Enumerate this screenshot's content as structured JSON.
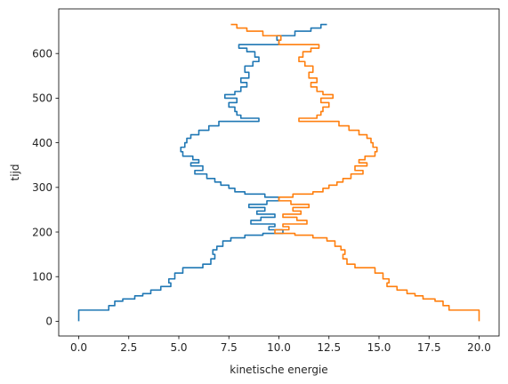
{
  "chart_data": {
    "type": "line",
    "title": "",
    "xlabel": "kinetische energie",
    "ylabel": "tijd",
    "xlim": [
      -1.0,
      21.0
    ],
    "ylim": [
      -33,
      700
    ],
    "xticks": [
      0.0,
      2.5,
      5.0,
      7.5,
      10.0,
      12.5,
      15.0,
      17.5,
      20.0
    ],
    "xtick_labels": [
      "0.0",
      "2.5",
      "5.0",
      "7.5",
      "10.0",
      "12.5",
      "15.0",
      "17.5",
      "20.0"
    ],
    "yticks": [
      0,
      100,
      200,
      300,
      400,
      500,
      600
    ],
    "ytick_labels": [
      "0",
      "100",
      "200",
      "300",
      "400",
      "500",
      "600"
    ],
    "grid": false,
    "legend": "none",
    "colors": [
      "#1f77b4",
      "#ff7f0e"
    ],
    "series": [
      {
        "points": [
          [
            0.0,
            0
          ],
          [
            0.0,
            25
          ],
          [
            1.5,
            25
          ],
          [
            1.5,
            35
          ],
          [
            1.8,
            35
          ],
          [
            1.8,
            45
          ],
          [
            2.2,
            45
          ],
          [
            2.2,
            50
          ],
          [
            2.8,
            50
          ],
          [
            2.8,
            57
          ],
          [
            3.2,
            57
          ],
          [
            3.2,
            62
          ],
          [
            3.6,
            62
          ],
          [
            3.6,
            70
          ],
          [
            4.1,
            70
          ],
          [
            4.1,
            78
          ],
          [
            4.6,
            78
          ],
          [
            4.6,
            86
          ],
          [
            4.5,
            86
          ],
          [
            4.5,
            95
          ],
          [
            4.8,
            95
          ],
          [
            4.8,
            108
          ],
          [
            5.2,
            108
          ],
          [
            5.2,
            120
          ],
          [
            6.2,
            120
          ],
          [
            6.2,
            128
          ],
          [
            6.6,
            128
          ],
          [
            6.6,
            140
          ],
          [
            6.8,
            140
          ],
          [
            6.8,
            150
          ],
          [
            6.7,
            150
          ],
          [
            6.7,
            160
          ],
          [
            6.9,
            160
          ],
          [
            6.9,
            168
          ],
          [
            7.2,
            168
          ],
          [
            7.2,
            180
          ],
          [
            7.6,
            180
          ],
          [
            7.6,
            187
          ],
          [
            8.3,
            187
          ],
          [
            8.3,
            193
          ],
          [
            9.2,
            193
          ],
          [
            9.2,
            197
          ],
          [
            10.2,
            197
          ],
          [
            10.2,
            205
          ],
          [
            9.5,
            205
          ],
          [
            9.5,
            212
          ],
          [
            9.8,
            212
          ],
          [
            9.8,
            218
          ],
          [
            8.6,
            218
          ],
          [
            8.6,
            226
          ],
          [
            9.1,
            226
          ],
          [
            9.1,
            233
          ],
          [
            9.8,
            233
          ],
          [
            9.8,
            240
          ],
          [
            8.9,
            240
          ],
          [
            8.9,
            247
          ],
          [
            9.3,
            247
          ],
          [
            9.3,
            255
          ],
          [
            8.5,
            255
          ],
          [
            8.5,
            262
          ],
          [
            9.4,
            262
          ],
          [
            9.4,
            270
          ],
          [
            10.0,
            270
          ],
          [
            10.0,
            278
          ],
          [
            9.3,
            278
          ],
          [
            9.3,
            285
          ],
          [
            8.3,
            285
          ],
          [
            8.3,
            290
          ],
          [
            7.8,
            290
          ],
          [
            7.8,
            298
          ],
          [
            7.5,
            298
          ],
          [
            7.5,
            305
          ],
          [
            7.1,
            305
          ],
          [
            7.1,
            312
          ],
          [
            6.8,
            312
          ],
          [
            6.8,
            320
          ],
          [
            6.4,
            320
          ],
          [
            6.4,
            330
          ],
          [
            5.8,
            330
          ],
          [
            5.8,
            338
          ],
          [
            6.2,
            338
          ],
          [
            6.2,
            348
          ],
          [
            5.6,
            348
          ],
          [
            5.6,
            355
          ],
          [
            6.0,
            355
          ],
          [
            6.0,
            362
          ],
          [
            5.7,
            362
          ],
          [
            5.7,
            370
          ],
          [
            5.2,
            370
          ],
          [
            5.2,
            380
          ],
          [
            5.1,
            380
          ],
          [
            5.1,
            390
          ],
          [
            5.3,
            390
          ],
          [
            5.3,
            400
          ],
          [
            5.4,
            400
          ],
          [
            5.4,
            410
          ],
          [
            5.6,
            410
          ],
          [
            5.6,
            418
          ],
          [
            6.0,
            418
          ],
          [
            6.0,
            428
          ],
          [
            6.5,
            428
          ],
          [
            6.5,
            438
          ],
          [
            7.0,
            438
          ],
          [
            7.0,
            448
          ],
          [
            9.0,
            448
          ],
          [
            9.0,
            455
          ],
          [
            8.1,
            455
          ],
          [
            8.1,
            462
          ],
          [
            7.9,
            462
          ],
          [
            7.9,
            470
          ],
          [
            7.8,
            470
          ],
          [
            7.8,
            480
          ],
          [
            7.5,
            480
          ],
          [
            7.5,
            490
          ],
          [
            7.9,
            490
          ],
          [
            7.9,
            500
          ],
          [
            7.3,
            500
          ],
          [
            7.3,
            508
          ],
          [
            7.8,
            508
          ],
          [
            7.8,
            515
          ],
          [
            8.1,
            515
          ],
          [
            8.1,
            525
          ],
          [
            8.4,
            525
          ],
          [
            8.4,
            535
          ],
          [
            8.1,
            535
          ],
          [
            8.1,
            545
          ],
          [
            8.5,
            545
          ],
          [
            8.5,
            558
          ],
          [
            8.3,
            558
          ],
          [
            8.3,
            572
          ],
          [
            8.7,
            572
          ],
          [
            8.7,
            582
          ],
          [
            9.0,
            582
          ],
          [
            9.0,
            592
          ],
          [
            8.8,
            592
          ],
          [
            8.8,
            604
          ],
          [
            8.4,
            604
          ],
          [
            8.4,
            612
          ],
          [
            8.0,
            612
          ],
          [
            8.0,
            620
          ],
          [
            10.0,
            620
          ],
          [
            10.0,
            630
          ],
          [
            9.9,
            630
          ],
          [
            9.9,
            640
          ],
          [
            10.8,
            640
          ],
          [
            10.8,
            650
          ],
          [
            11.6,
            650
          ],
          [
            11.6,
            657
          ],
          [
            12.1,
            657
          ],
          [
            12.1,
            665
          ],
          [
            12.4,
            665
          ]
        ]
      },
      {
        "points": [
          [
            20.0,
            0
          ],
          [
            20.0,
            25
          ],
          [
            18.5,
            25
          ],
          [
            18.5,
            35
          ],
          [
            18.2,
            35
          ],
          [
            18.2,
            45
          ],
          [
            17.8,
            45
          ],
          [
            17.8,
            50
          ],
          [
            17.2,
            50
          ],
          [
            17.2,
            57
          ],
          [
            16.8,
            57
          ],
          [
            16.8,
            62
          ],
          [
            16.4,
            62
          ],
          [
            16.4,
            70
          ],
          [
            15.9,
            70
          ],
          [
            15.9,
            78
          ],
          [
            15.4,
            78
          ],
          [
            15.4,
            86
          ],
          [
            15.5,
            86
          ],
          [
            15.5,
            95
          ],
          [
            15.2,
            95
          ],
          [
            15.2,
            108
          ],
          [
            14.8,
            108
          ],
          [
            14.8,
            120
          ],
          [
            13.8,
            120
          ],
          [
            13.8,
            128
          ],
          [
            13.4,
            128
          ],
          [
            13.4,
            140
          ],
          [
            13.2,
            140
          ],
          [
            13.2,
            150
          ],
          [
            13.3,
            150
          ],
          [
            13.3,
            160
          ],
          [
            13.1,
            160
          ],
          [
            13.1,
            168
          ],
          [
            12.8,
            168
          ],
          [
            12.8,
            180
          ],
          [
            12.4,
            180
          ],
          [
            12.4,
            187
          ],
          [
            11.7,
            187
          ],
          [
            11.7,
            193
          ],
          [
            10.8,
            193
          ],
          [
            10.8,
            197
          ],
          [
            9.8,
            197
          ],
          [
            9.8,
            205
          ],
          [
            10.5,
            205
          ],
          [
            10.5,
            212
          ],
          [
            10.2,
            212
          ],
          [
            10.2,
            218
          ],
          [
            11.4,
            218
          ],
          [
            11.4,
            226
          ],
          [
            10.9,
            226
          ],
          [
            10.9,
            233
          ],
          [
            10.2,
            233
          ],
          [
            10.2,
            240
          ],
          [
            11.1,
            240
          ],
          [
            11.1,
            247
          ],
          [
            10.7,
            247
          ],
          [
            10.7,
            255
          ],
          [
            11.5,
            255
          ],
          [
            11.5,
            262
          ],
          [
            10.6,
            262
          ],
          [
            10.6,
            270
          ],
          [
            10.0,
            270
          ],
          [
            10.0,
            278
          ],
          [
            10.7,
            278
          ],
          [
            10.7,
            285
          ],
          [
            11.7,
            285
          ],
          [
            11.7,
            290
          ],
          [
            12.2,
            290
          ],
          [
            12.2,
            298
          ],
          [
            12.5,
            298
          ],
          [
            12.5,
            305
          ],
          [
            12.9,
            305
          ],
          [
            12.9,
            312
          ],
          [
            13.2,
            312
          ],
          [
            13.2,
            320
          ],
          [
            13.6,
            320
          ],
          [
            13.6,
            330
          ],
          [
            14.2,
            330
          ],
          [
            14.2,
            338
          ],
          [
            13.8,
            338
          ],
          [
            13.8,
            348
          ],
          [
            14.4,
            348
          ],
          [
            14.4,
            355
          ],
          [
            14.0,
            355
          ],
          [
            14.0,
            362
          ],
          [
            14.3,
            362
          ],
          [
            14.3,
            370
          ],
          [
            14.8,
            370
          ],
          [
            14.8,
            380
          ],
          [
            14.9,
            380
          ],
          [
            14.9,
            390
          ],
          [
            14.7,
            390
          ],
          [
            14.7,
            400
          ],
          [
            14.6,
            400
          ],
          [
            14.6,
            410
          ],
          [
            14.4,
            410
          ],
          [
            14.4,
            418
          ],
          [
            14.0,
            418
          ],
          [
            14.0,
            428
          ],
          [
            13.5,
            428
          ],
          [
            13.5,
            438
          ],
          [
            13.0,
            438
          ],
          [
            13.0,
            448
          ],
          [
            11.0,
            448
          ],
          [
            11.0,
            455
          ],
          [
            11.9,
            455
          ],
          [
            11.9,
            462
          ],
          [
            12.1,
            462
          ],
          [
            12.1,
            470
          ],
          [
            12.2,
            470
          ],
          [
            12.2,
            480
          ],
          [
            12.5,
            480
          ],
          [
            12.5,
            490
          ],
          [
            12.1,
            490
          ],
          [
            12.1,
            500
          ],
          [
            12.7,
            500
          ],
          [
            12.7,
            508
          ],
          [
            12.2,
            508
          ],
          [
            12.2,
            515
          ],
          [
            11.9,
            515
          ],
          [
            11.9,
            525
          ],
          [
            11.6,
            525
          ],
          [
            11.6,
            535
          ],
          [
            11.9,
            535
          ],
          [
            11.9,
            545
          ],
          [
            11.5,
            545
          ],
          [
            11.5,
            558
          ],
          [
            11.7,
            558
          ],
          [
            11.7,
            572
          ],
          [
            11.3,
            572
          ],
          [
            11.3,
            582
          ],
          [
            11.0,
            582
          ],
          [
            11.0,
            592
          ],
          [
            11.2,
            592
          ],
          [
            11.2,
            604
          ],
          [
            11.6,
            604
          ],
          [
            11.6,
            612
          ],
          [
            12.0,
            612
          ],
          [
            12.0,
            620
          ],
          [
            10.0,
            620
          ],
          [
            10.0,
            630
          ],
          [
            10.1,
            630
          ],
          [
            10.1,
            640
          ],
          [
            9.2,
            640
          ],
          [
            9.2,
            650
          ],
          [
            8.4,
            650
          ],
          [
            8.4,
            657
          ],
          [
            7.9,
            657
          ],
          [
            7.9,
            665
          ],
          [
            7.6,
            665
          ]
        ]
      }
    ]
  }
}
